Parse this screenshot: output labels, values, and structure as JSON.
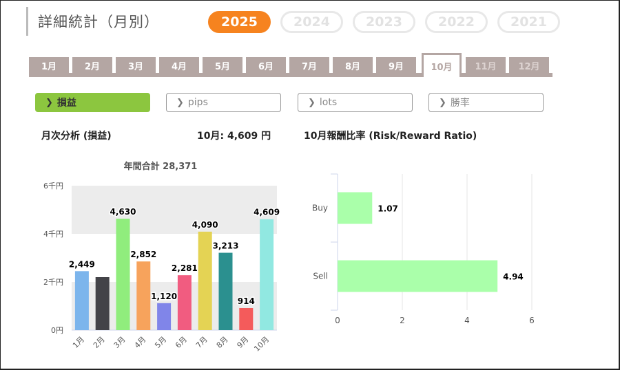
{
  "header": {
    "title": "詳細統計（月別）",
    "years": [
      {
        "label": "2025",
        "active": true
      },
      {
        "label": "2024",
        "active": false
      },
      {
        "label": "2023",
        "active": false
      },
      {
        "label": "2022",
        "active": false
      },
      {
        "label": "2021",
        "active": false
      }
    ]
  },
  "months": {
    "tabs": [
      "1月",
      "2月",
      "3月",
      "4月",
      "5月",
      "6月",
      "7月",
      "8月",
      "9月",
      "10月",
      "11月",
      "12月"
    ],
    "active": "10月",
    "disabled": [
      "11月",
      "12月"
    ]
  },
  "filters": [
    {
      "label": "損益",
      "active": true,
      "icon": "chevron-right-icon"
    },
    {
      "label": "pips",
      "active": false,
      "icon": "chevron-right-icon"
    },
    {
      "label": "lots",
      "active": false,
      "icon": "chevron-right-icon"
    },
    {
      "label": "勝率",
      "active": false,
      "icon": "chevron-right-icon"
    }
  ],
  "summary": {
    "left_title": "月次分析 (損益)",
    "month_value": "10月:  4,609 円",
    "right_title": "10月報酬比率 (Risk/Reward Ratio)"
  },
  "chart_data": [
    {
      "type": "bar",
      "title": "年間合計 28,371",
      "categories": [
        "1月",
        "2月",
        "3月",
        "4月",
        "5月",
        "6月",
        "7月",
        "8月",
        "9月",
        "10月"
      ],
      "values": [
        2449,
        2200,
        4630,
        2852,
        1120,
        2281,
        4090,
        3213,
        914,
        4609
      ],
      "data_labels": [
        "2,449",
        "",
        "4,630",
        "2,852",
        "1,120",
        "2,281",
        "4,090",
        "3,213",
        "914",
        "4,609"
      ],
      "colors": [
        "#7cb5ec",
        "#434348",
        "#90ed7d",
        "#f7a35c",
        "#8085e9",
        "#f15c80",
        "#e4d354",
        "#2b908f",
        "#f45b5b",
        "#91e8e1"
      ],
      "y_ticks": [
        "0円",
        "2千円",
        "4千円",
        "6千円"
      ],
      "y_tick_values": [
        0,
        2000,
        4000,
        6000
      ],
      "ylim": [
        0,
        6000
      ],
      "grid": true
    },
    {
      "type": "bar",
      "orientation": "horizontal",
      "categories": [
        "Buy",
        "Sell"
      ],
      "values": [
        1.07,
        4.94
      ],
      "data_labels": [
        "1.07",
        "4.94"
      ],
      "color": "#aaffaa",
      "x_ticks": [
        "0",
        "2",
        "4",
        "6"
      ],
      "x_tick_values": [
        0,
        2,
        4,
        6
      ],
      "xlim": [
        0,
        6
      ],
      "grid": true
    }
  ]
}
